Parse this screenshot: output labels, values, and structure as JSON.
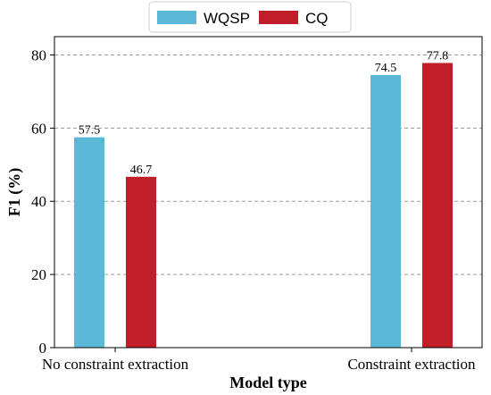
{
  "chart_data": {
    "type": "bar",
    "categories": [
      "No constraint extraction",
      "Constraint extraction"
    ],
    "series": [
      {
        "name": "WQSP",
        "values": [
          57.5,
          74.5
        ],
        "color": "#5BB8D6"
      },
      {
        "name": "CQ",
        "values": [
          46.7,
          77.8
        ],
        "color": "#C01F2A"
      }
    ],
    "xlabel": "Model type",
    "ylabel": "F1 (%)",
    "ylim": [
      0,
      85
    ],
    "yticks": [
      0,
      20,
      40,
      60,
      80
    ],
    "grid": "horizontal dashed",
    "legend_position": "top-center"
  }
}
